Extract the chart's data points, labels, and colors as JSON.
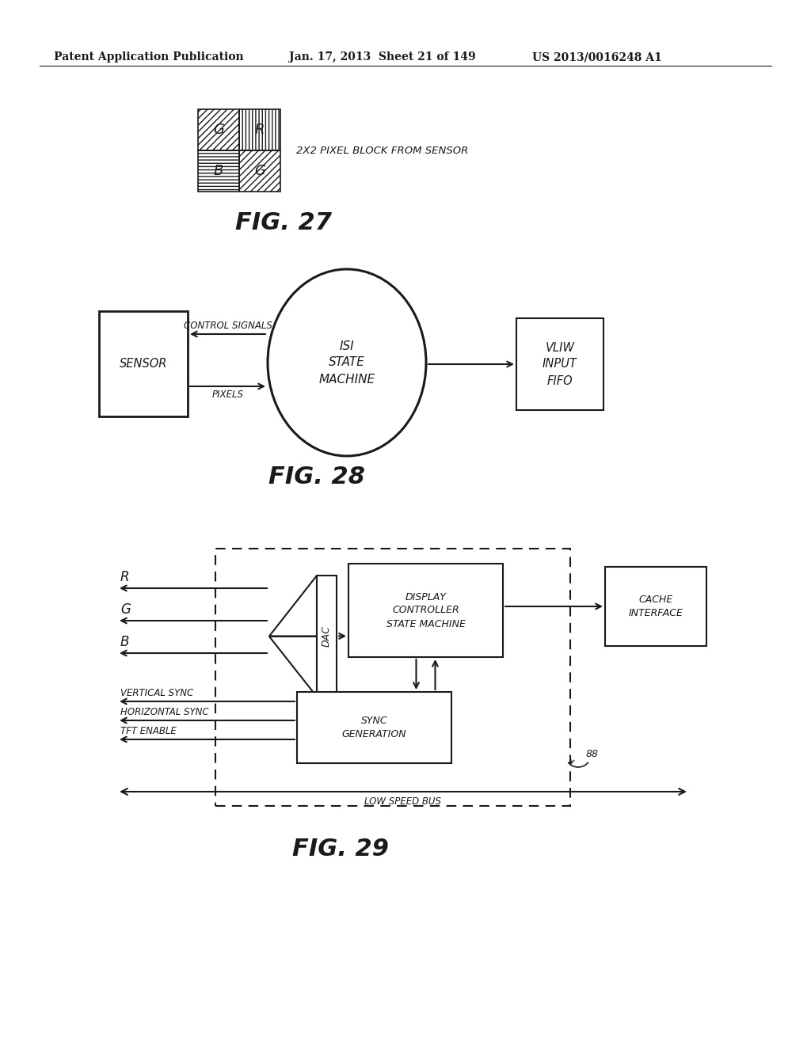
{
  "header_left": "Patent Application Publication",
  "header_mid": "Jan. 17, 2013  Sheet 21 of 149",
  "header_right": "US 2013/0016248 A1",
  "fig27_label": "FIG. 27",
  "fig27_caption": "2X2 PIXEL BLOCK FROM SENSOR",
  "fig28_label": "FIG. 28",
  "fig28_sensor": "SENSOR",
  "fig28_circle": "ISI\nSTATE\nMACHINE",
  "fig28_ctrl_signals": "CONTROL SIGNALS",
  "fig28_pixels": "PIXELS",
  "fig28_vliw": "VLIW\nINPUT\nFIFO",
  "fig29_label": "FIG. 29",
  "fig29_r": "R",
  "fig29_g": "G",
  "fig29_b": "B",
  "fig29_dac": "DAC",
  "fig29_display": "DISPLAY\nCONTROLLER\nSTATE MACHINE",
  "fig29_cache": "CACHE\nINTERFACE",
  "fig29_sync": "SYNC\nGENERATION",
  "fig29_vsync": "VERTICAL SYNC",
  "fig29_hsync": "HORIZONTAL SYNC",
  "fig29_tft": "TFT ENABLE",
  "fig29_bus": "LOW SPEED BUS",
  "fig29_88": "88",
  "bg_color": "#ffffff",
  "line_color": "#1a1a1a",
  "font_color": "#1a1a1a"
}
